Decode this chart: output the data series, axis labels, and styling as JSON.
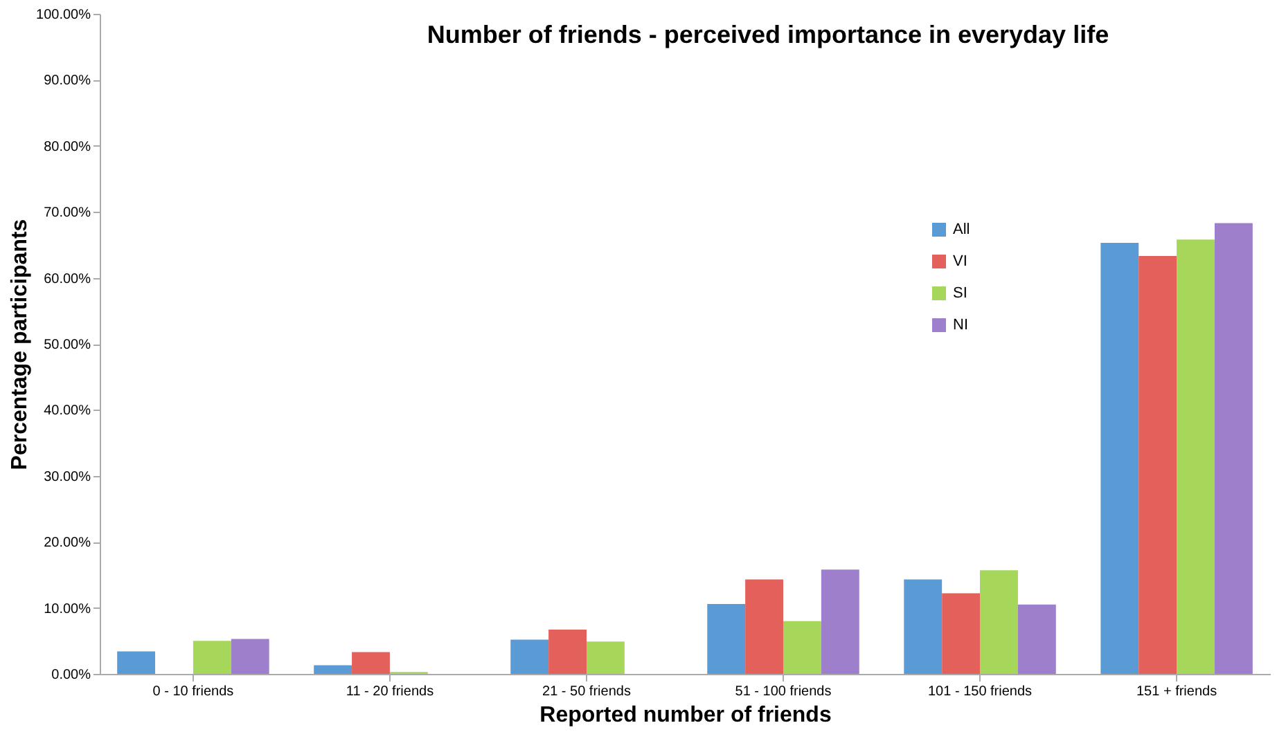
{
  "chart_data": {
    "type": "bar",
    "title": "Number of friends - perceived importance in everyday life",
    "xlabel": "Reported number of friends",
    "ylabel": "Percentage participants",
    "categories": [
      "0 - 10 friends",
      "11 - 20 friends",
      "21 - 50 friends",
      "51 - 100 friends",
      "101 - 150 friends",
      "151 + friends"
    ],
    "series": [
      {
        "name": "All",
        "color": "#5b9bd5",
        "values": [
          3.4,
          1.3,
          5.2,
          10.6,
          14.3,
          65.3
        ]
      },
      {
        "name": "VI",
        "color": "#e4605a",
        "values": [
          0,
          3.3,
          6.7,
          14.3,
          12.2,
          63.3
        ]
      },
      {
        "name": "SI",
        "color": "#a6d65a",
        "values": [
          5.0,
          0.3,
          4.9,
          8.0,
          15.7,
          65.8
        ]
      },
      {
        "name": "NI",
        "color": "#9e7fcc",
        "values": [
          5.3,
          0,
          0,
          15.8,
          10.5,
          68.3
        ]
      }
    ],
    "ylim": [
      0,
      100
    ],
    "yticks": [
      {
        "value": 0,
        "label": "0.00%"
      },
      {
        "value": 10,
        "label": "10.00%"
      },
      {
        "value": 20,
        "label": "20.00%"
      },
      {
        "value": 30,
        "label": "30.00%"
      },
      {
        "value": 40,
        "label": "40.00%"
      },
      {
        "value": 50,
        "label": "50.00%"
      },
      {
        "value": 60,
        "label": "60.00%"
      },
      {
        "value": 70,
        "label": "70.00%"
      },
      {
        "value": 80,
        "label": "80.00%"
      },
      {
        "value": 90,
        "label": "90.00%"
      },
      {
        "value": 100,
        "label": "100.00%"
      }
    ],
    "grid": false,
    "legend": "right"
  }
}
